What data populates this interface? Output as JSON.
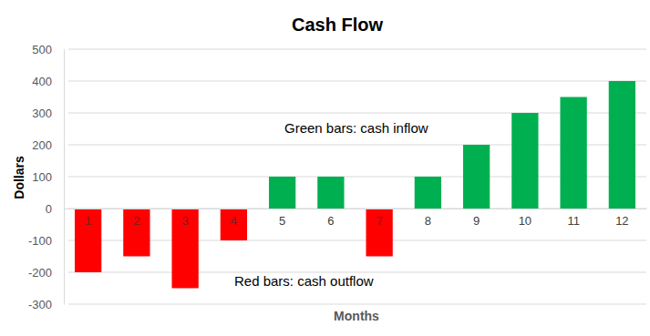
{
  "chart_data": {
    "type": "bar",
    "title": "Cash Flow",
    "x_label": "Months",
    "y_label": "Dollars",
    "categories": [
      "1",
      "2",
      "3",
      "4",
      "5",
      "6",
      "7",
      "8",
      "9",
      "10",
      "11",
      "12"
    ],
    "values": [
      -200,
      -150,
      -250,
      -100,
      100,
      100,
      -150,
      100,
      200,
      300,
      350,
      400
    ],
    "colors": [
      "#ff0000",
      "#ff0000",
      "#ff0000",
      "#ff0000",
      "#00b050",
      "#00b050",
      "#ff0000",
      "#00b050",
      "#00b050",
      "#00b050",
      "#00b050",
      "#00b050"
    ],
    "ylim": [
      -300,
      500
    ],
    "yticks": [
      -300,
      -200,
      -100,
      0,
      100,
      200,
      300,
      400,
      500
    ],
    "grid": true,
    "annotations": [
      "Green bars: cash inflow",
      "Red bars: cash outflow"
    ]
  }
}
